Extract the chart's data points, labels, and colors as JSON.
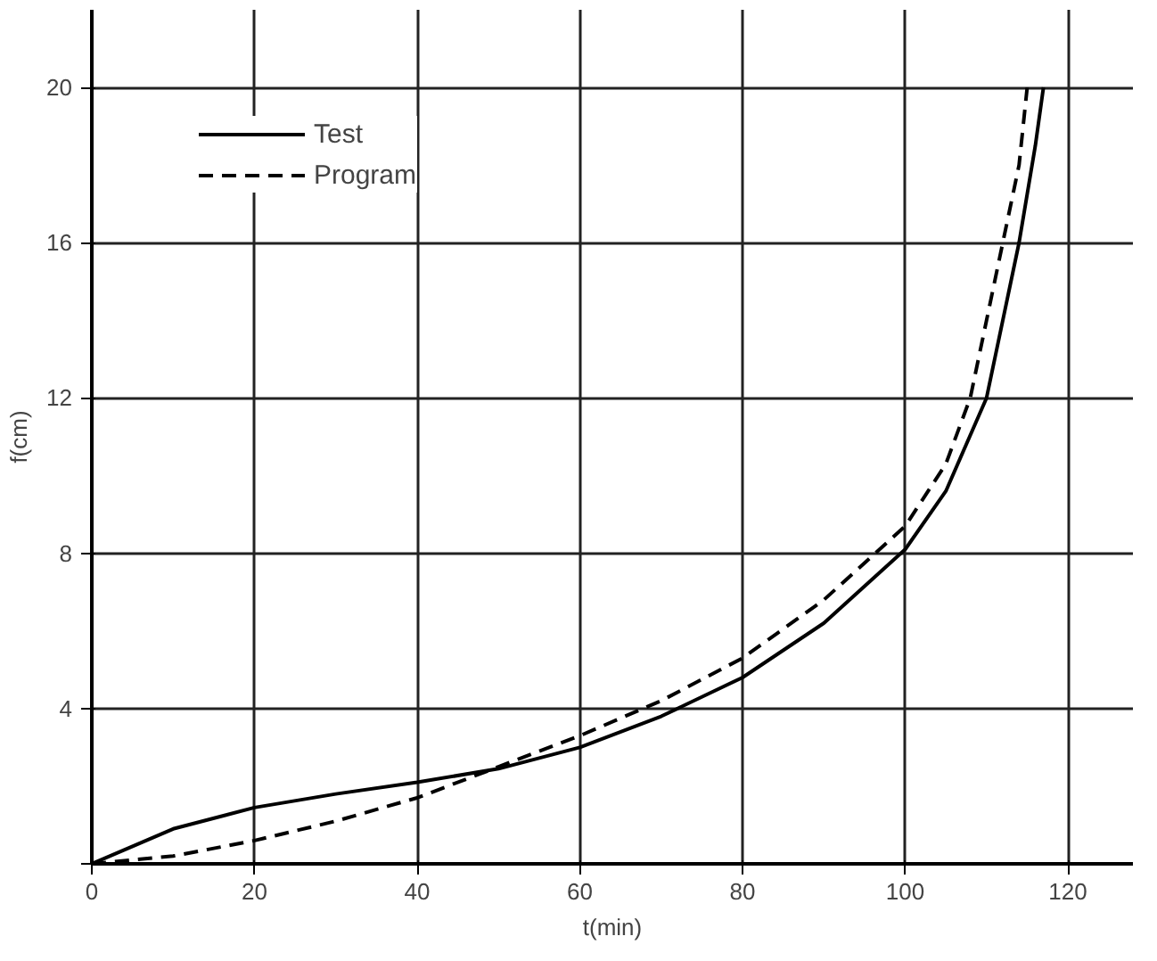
{
  "chart_data": {
    "type": "line",
    "xlabel": "t(min)",
    "ylabel": "f(cm)",
    "xlim": [
      0,
      128
    ],
    "ylim": [
      0,
      22
    ],
    "xticks": [
      0,
      20,
      40,
      60,
      80,
      100,
      120
    ],
    "yticks": [
      {
        "value": 0,
        "label": null
      },
      4,
      8,
      12,
      16,
      20
    ],
    "grid": true,
    "legend": "top left",
    "series": [
      {
        "name": "Test",
        "color": "#000000",
        "line_style": "solid",
        "x": [
          0,
          10,
          20,
          30,
          40,
          50,
          60,
          70,
          80,
          90,
          100,
          105,
          110,
          112,
          114,
          116,
          117
        ],
        "values": [
          0,
          0.9,
          1.45,
          1.8,
          2.1,
          2.45,
          3.0,
          3.8,
          4.8,
          6.2,
          8.1,
          9.6,
          12,
          14,
          16,
          18.5,
          20
        ]
      },
      {
        "name": "Program",
        "color": "#000000",
        "line_style": "dashed",
        "x": [
          0,
          10,
          20,
          30,
          40,
          50,
          60,
          70,
          80,
          90,
          100,
          105,
          108,
          110,
          112,
          114,
          115
        ],
        "values": [
          0,
          0.2,
          0.6,
          1.1,
          1.7,
          2.5,
          3.3,
          4.2,
          5.3,
          6.8,
          8.7,
          10.3,
          12,
          14,
          16,
          18,
          20
        ]
      }
    ]
  }
}
